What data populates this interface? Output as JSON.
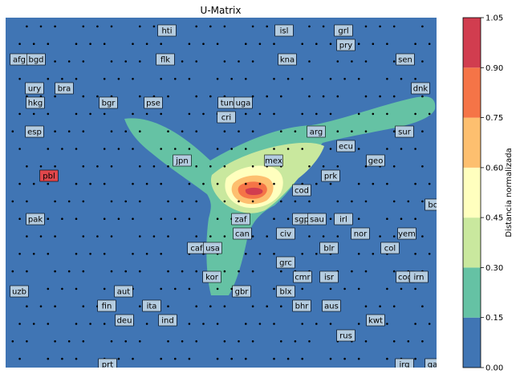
{
  "chart_data": {
    "type": "heatmap",
    "title": "U-Matrix",
    "grid": false,
    "colorbar": {
      "label": "Distancia normalizada",
      "levels": [
        0.0,
        0.15,
        0.3,
        0.45,
        0.6,
        0.75,
        0.9,
        1.05
      ],
      "tick_labels": [
        "0.00",
        "0.15",
        "0.30",
        "0.45",
        "0.60",
        "0.75",
        "0.90",
        "1.05"
      ],
      "colors": [
        "#4075b4",
        "#65c2a4",
        "#c9e89e",
        "#ffffbe",
        "#fdbf6f",
        "#f57447",
        "#d13d4f"
      ]
    },
    "contours": [
      {
        "level": 0.15,
        "shape": "three-armed region around central peak (arms to upper-left, upper-right and down)"
      },
      {
        "level": 0.3,
        "shape": "ellipse around the peak extending toward upper-right"
      },
      {
        "level": 0.45,
        "shape": "small ellipse"
      },
      {
        "level": 0.6,
        "shape": "small ellipse"
      },
      {
        "level": 0.75,
        "shape": "smaller ellipse"
      },
      {
        "level": 0.9,
        "shape": "peak near label mex/cod"
      }
    ],
    "labels": [
      {
        "text": "hti",
        "highlight": false
      },
      {
        "text": "isl",
        "highlight": false
      },
      {
        "text": "grl",
        "highlight": false
      },
      {
        "text": "pry",
        "highlight": false
      },
      {
        "text": "afg",
        "highlight": false
      },
      {
        "text": "bgd",
        "highlight": false
      },
      {
        "text": "flk",
        "highlight": false
      },
      {
        "text": "kna",
        "highlight": false
      },
      {
        "text": "sen",
        "highlight": false
      },
      {
        "text": "ury",
        "highlight": false
      },
      {
        "text": "bra",
        "highlight": false
      },
      {
        "text": "dnk",
        "highlight": false
      },
      {
        "text": "hkg",
        "highlight": false
      },
      {
        "text": "bgr",
        "highlight": false
      },
      {
        "text": "pse",
        "highlight": false
      },
      {
        "text": "tun",
        "highlight": false
      },
      {
        "text": "uga",
        "highlight": false
      },
      {
        "text": "cri",
        "highlight": false
      },
      {
        "text": "esp",
        "highlight": false
      },
      {
        "text": "arg",
        "highlight": false
      },
      {
        "text": "sur",
        "highlight": false
      },
      {
        "text": "ecu",
        "highlight": false
      },
      {
        "text": "jpn",
        "highlight": false
      },
      {
        "text": "mex",
        "highlight": false
      },
      {
        "text": "geo",
        "highlight": false
      },
      {
        "text": "pbl",
        "highlight": true
      },
      {
        "text": "prk",
        "highlight": false
      },
      {
        "text": "cod",
        "highlight": false
      },
      {
        "text": "bol",
        "highlight": false
      },
      {
        "text": "pak",
        "highlight": false
      },
      {
        "text": "zaf",
        "highlight": false
      },
      {
        "text": "sgp",
        "highlight": false
      },
      {
        "text": "sau",
        "highlight": false
      },
      {
        "text": "irl",
        "highlight": false
      },
      {
        "text": "can",
        "highlight": false
      },
      {
        "text": "civ",
        "highlight": false
      },
      {
        "text": "nor",
        "highlight": false
      },
      {
        "text": "yem",
        "highlight": false
      },
      {
        "text": "caf",
        "highlight": false
      },
      {
        "text": "usa",
        "highlight": false
      },
      {
        "text": "blr",
        "highlight": false
      },
      {
        "text": "col",
        "highlight": false
      },
      {
        "text": "grc",
        "highlight": false
      },
      {
        "text": "kor",
        "highlight": false
      },
      {
        "text": "cmr",
        "highlight": false
      },
      {
        "text": "isr",
        "highlight": false
      },
      {
        "text": "cog",
        "highlight": false
      },
      {
        "text": "irn",
        "highlight": false
      },
      {
        "text": "uzb",
        "highlight": false
      },
      {
        "text": "aut",
        "highlight": false
      },
      {
        "text": "gbr",
        "highlight": false
      },
      {
        "text": "blx",
        "highlight": false
      },
      {
        "text": "fin",
        "highlight": false
      },
      {
        "text": "ita",
        "highlight": false
      },
      {
        "text": "bhr",
        "highlight": false
      },
      {
        "text": "aus",
        "highlight": false
      },
      {
        "text": "deu",
        "highlight": false
      },
      {
        "text": "ind",
        "highlight": false
      },
      {
        "text": "kwt",
        "highlight": false
      },
      {
        "text": "rus",
        "highlight": false
      },
      {
        "text": "prt",
        "highlight": false
      },
      {
        "text": "irq",
        "highlight": false
      },
      {
        "text": "qat",
        "highlight": false
      }
    ]
  }
}
